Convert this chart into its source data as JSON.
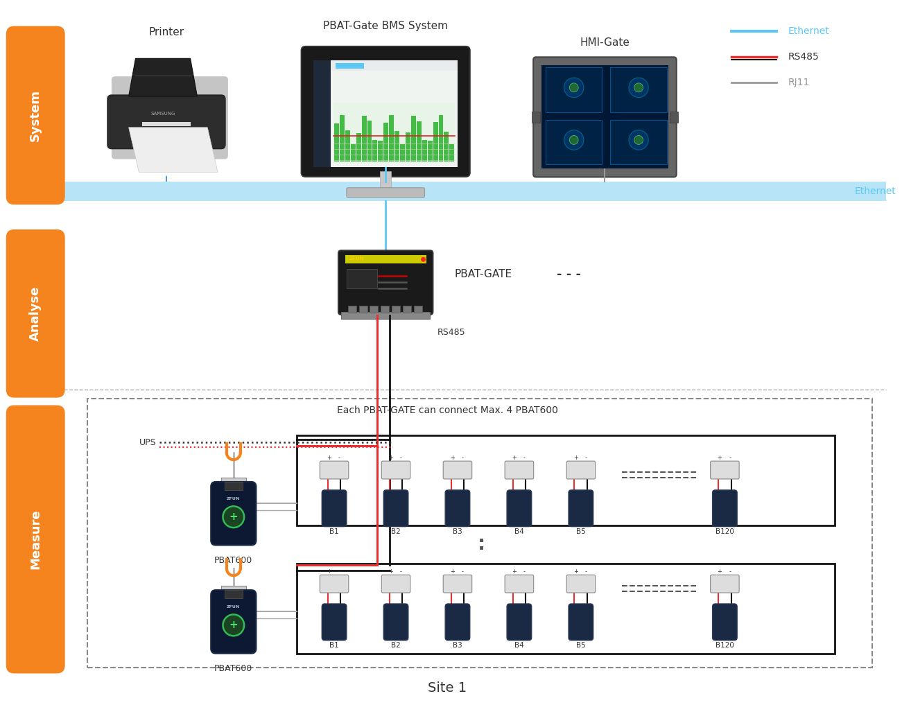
{
  "bg_color": "#ffffff",
  "orange_color": "#F5841F",
  "ethernet_color": "#5BC8F5",
  "rs485_red": "#E83030",
  "rs485_black": "#111111",
  "rj11_color": "#999999",
  "dashed_gray": "#aaaaaa",
  "labels": {
    "system": "System",
    "analyse": "Analyse",
    "measure": "Measure",
    "printer": "Printer",
    "bms": "PBAT-Gate BMS System",
    "hmi": "HMI-Gate",
    "pbat_gate": "PBAT-GATE",
    "pbat600_1": "PBAT600",
    "pbat600_2": "PBAT600",
    "ups": "UPS",
    "rs485_label": "RS485",
    "ethernet_label": "Ethernet",
    "site1": "Site 1",
    "connect_note": "Each PBAT-GATE can connect Max. 4 PBAT600",
    "battery_labels_1": [
      "B1",
      "B2",
      "B3",
      "B4",
      "B5",
      "B120"
    ],
    "battery_labels_2": [
      "B1",
      "B2",
      "B3",
      "B4",
      "B5",
      "B120"
    ],
    "legend_ethernet": "Ethernet",
    "legend_rs485": "RS485",
    "legend_rj11": "RJ11"
  },
  "dots_label": "- - -"
}
